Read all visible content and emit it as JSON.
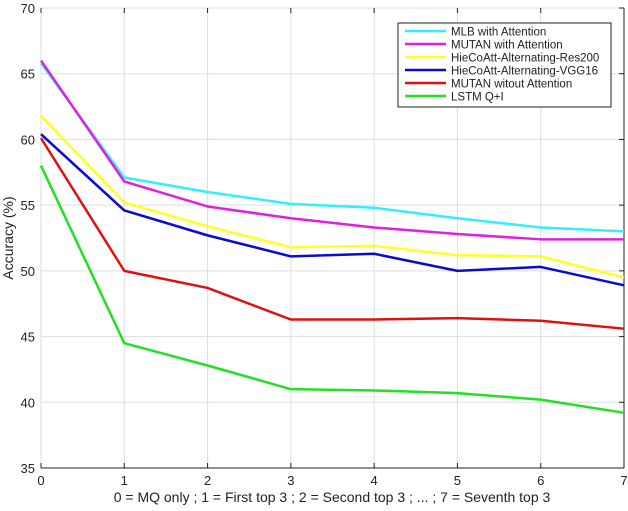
{
  "chart_data": {
    "type": "line",
    "title": "",
    "xlabel": "0 = MQ only ; 1 = First top 3 ; 2 = Second top 3 ; ... ; 7 = Seventh top 3",
    "ylabel": "Accuracy (%)",
    "x": [
      0,
      1,
      2,
      3,
      4,
      5,
      6,
      7
    ],
    "xlim": [
      0,
      7
    ],
    "ylim": [
      35,
      70
    ],
    "xticks": [
      "0",
      "1",
      "2",
      "3",
      "4",
      "5",
      "6",
      "7"
    ],
    "yticks": [
      "35",
      "40",
      "45",
      "50",
      "55",
      "60",
      "65",
      "70"
    ],
    "grid": true,
    "legend_position": "top-right",
    "series": [
      {
        "name": "MLB with Attention",
        "color": "#33eeff",
        "values": [
          65.8,
          57.1,
          56.0,
          55.1,
          54.8,
          54.0,
          53.3,
          53.0
        ]
      },
      {
        "name": "MUTAN with Attention",
        "color": "#e020e0",
        "values": [
          66.0,
          56.8,
          54.9,
          54.0,
          53.3,
          52.8,
          52.4,
          52.4
        ]
      },
      {
        "name": "HieCoAtt-Alternating-Res200",
        "color": "#ffff22",
        "values": [
          61.8,
          55.2,
          53.4,
          51.8,
          51.9,
          51.2,
          51.1,
          49.5
        ]
      },
      {
        "name": "HieCoAtt-Alternating-VGG16",
        "color": "#0a0ad0",
        "values": [
          60.4,
          54.6,
          52.7,
          51.1,
          51.3,
          50.0,
          50.3,
          48.9
        ]
      },
      {
        "name": "MUTAN witout Attention",
        "color": "#e01010",
        "values": [
          60.1,
          50.0,
          48.7,
          46.3,
          46.3,
          46.4,
          46.2,
          45.6
        ]
      },
      {
        "name": "LSTM Q+I",
        "color": "#22e022",
        "values": [
          58.0,
          44.5,
          42.8,
          41.0,
          40.9,
          40.7,
          40.2,
          39.2
        ]
      }
    ]
  }
}
